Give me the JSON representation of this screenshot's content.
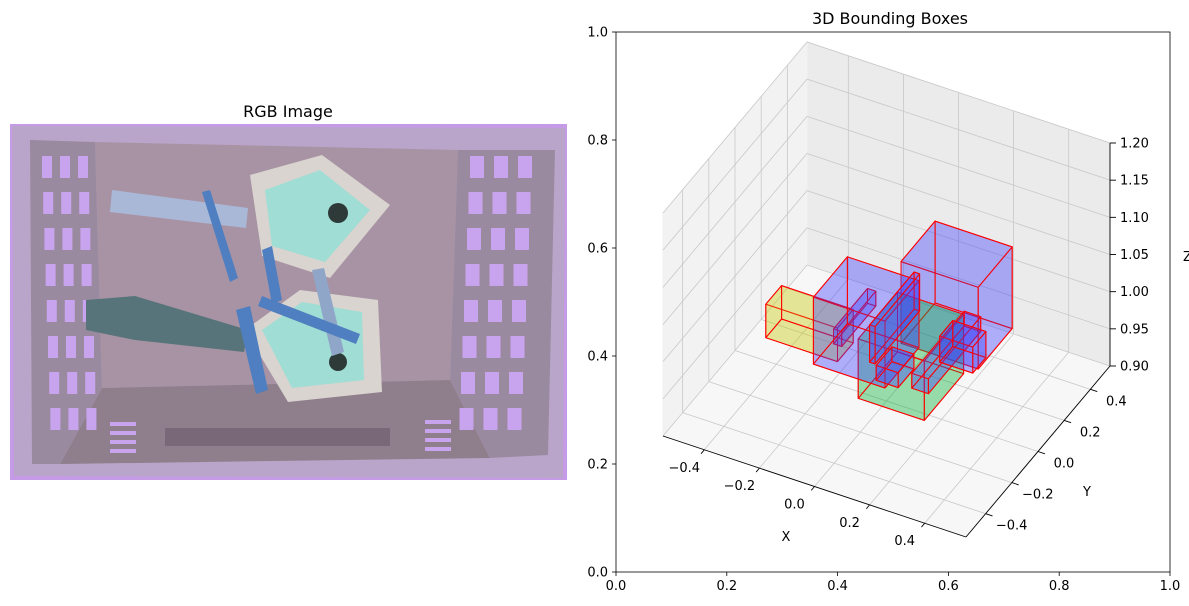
{
  "left_panel": {
    "title": "RGB Image",
    "colors": {
      "bin_outer": "#b9a5c9",
      "bin_floor": "#a893a4",
      "lavender": "#c59ae6",
      "cutout": "#c9a4ee",
      "house_panel": "#d9d4cf",
      "house_cyan": "#71e3d8",
      "knife": "#4f7fc0",
      "gun": "#57747a",
      "bar": "#aab8d8"
    }
  },
  "chart_data": [
    {
      "type": "2d-axes",
      "title": "",
      "xlim": [
        0.0,
        1.0
      ],
      "ylim": [
        0.0,
        1.0
      ],
      "x_ticks": [
        "0.0",
        "0.2",
        "0.4",
        "0.6",
        "0.8",
        "1.0"
      ],
      "y_ticks": [
        "0.0",
        "0.2",
        "0.4",
        "0.6",
        "0.8",
        "1.0"
      ]
    },
    {
      "type": "3d-boxes",
      "title": "3D Bounding Boxes",
      "xlabel": "X",
      "ylabel": "Y",
      "zlabel": "Z",
      "xlim": [
        -0.55,
        0.55
      ],
      "ylim": [
        -0.55,
        0.55
      ],
      "zlim": [
        0.9,
        1.2
      ],
      "x_ticks": [
        -0.4,
        -0.2,
        0.0,
        0.2,
        0.4
      ],
      "x_tick_labels": [
        "−0.4",
        "−0.2",
        "0.0",
        "0.2",
        "0.4"
      ],
      "y_ticks": [
        -0.4,
        -0.2,
        0.0,
        0.2,
        0.4
      ],
      "y_tick_labels": [
        "−0.4",
        "−0.2",
        "0.0",
        "0.2",
        "0.4"
      ],
      "z_ticks": [
        0.9,
        0.95,
        1.0,
        1.05,
        1.1,
        1.15,
        1.2
      ],
      "z_tick_labels": [
        "0.90",
        "0.95",
        "1.00",
        "1.05",
        "1.10",
        "1.15",
        "1.20"
      ],
      "edge_color": "#ff0000",
      "boxes": [
        {
          "center": [
            0.06,
            0.06,
            0.955
          ],
          "size": [
            0.24,
            0.3,
            0.08
          ],
          "color": "#00b030"
        },
        {
          "center": [
            0.05,
            -0.04,
            0.96
          ],
          "size": [
            0.08,
            0.12,
            0.02
          ],
          "color": "#3c3cff"
        },
        {
          "center": [
            0.16,
            0.12,
            0.96
          ],
          "size": [
            0.06,
            0.4,
            0.02
          ],
          "color": "#3c3cff"
        },
        {
          "center": [
            0.22,
            0.12,
            0.975
          ],
          "size": [
            0.12,
            0.1,
            0.035
          ],
          "color": "#3c3cff"
        },
        {
          "center": [
            -0.27,
            -0.02,
            0.975
          ],
          "size": [
            0.26,
            0.12,
            0.045
          ],
          "color": "#c8c800"
        },
        {
          "center": [
            -0.13,
            0.03,
            0.99
          ],
          "size": [
            0.03,
            0.26,
            0.02
          ],
          "color": "#3c3cff"
        },
        {
          "center": [
            0.15,
            0.22,
            1.015
          ],
          "size": [
            0.28,
            0.26,
            0.11
          ],
          "color": "#3c3cff"
        },
        {
          "center": [
            -0.05,
            -0.05,
            1.01
          ],
          "size": [
            0.26,
            0.26,
            0.09
          ],
          "color": "#3c3cff"
        },
        {
          "center": [
            0.02,
            0.02,
            1.01
          ],
          "size": [
            0.02,
            0.34,
            0.05
          ],
          "color": "#3c3cff"
        }
      ]
    }
  ]
}
